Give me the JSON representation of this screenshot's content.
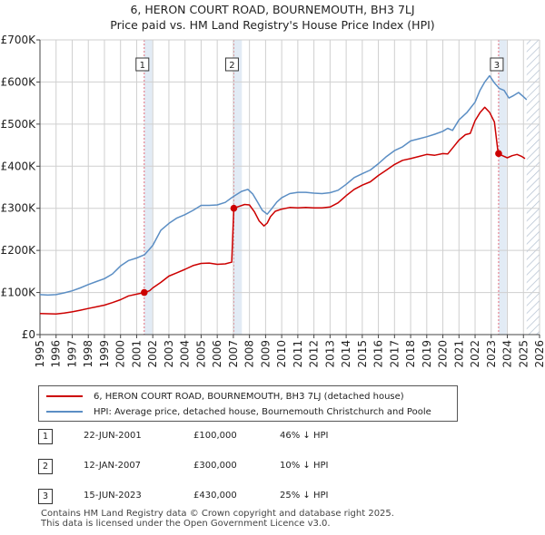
{
  "title": {
    "line1": "6, HERON COURT ROAD, BOURNEMOUTH, BH3 7LJ",
    "line2": "Price paid vs. HM Land Registry's House Price Index (HPI)"
  },
  "colors": {
    "property_line": "#cc0000",
    "hpi_line": "#5b8ec4",
    "marker_line": "#e06c7a",
    "sale_shade": "#dbe6f3",
    "future_hatch": "#b5c2d2",
    "grid": "#cfcfcf"
  },
  "chart_data": {
    "type": "line",
    "xlabel": "",
    "ylabel": "",
    "xlim": [
      1995,
      2026
    ],
    "ylim": [
      0,
      700000
    ],
    "x_ticks": [
      "1995",
      "1996",
      "1997",
      "1998",
      "1999",
      "2000",
      "2001",
      "2002",
      "2003",
      "2004",
      "2005",
      "2006",
      "2007",
      "2008",
      "2009",
      "2010",
      "2011",
      "2012",
      "2013",
      "2014",
      "2015",
      "2016",
      "2017",
      "2018",
      "2019",
      "2020",
      "2021",
      "2022",
      "2023",
      "2024",
      "2025",
      "2026"
    ],
    "y_ticks": [
      {
        "value": 0,
        "label": "£0"
      },
      {
        "value": 100000,
        "label": "£100K"
      },
      {
        "value": 200000,
        "label": "£200K"
      },
      {
        "value": 300000,
        "label": "£300K"
      },
      {
        "value": 400000,
        "label": "£400K"
      },
      {
        "value": 500000,
        "label": "£500K"
      },
      {
        "value": 600000,
        "label": "£600K"
      },
      {
        "value": 700000,
        "label": "£700K"
      }
    ],
    "grid": true,
    "data_end": 2025.2,
    "series": [
      {
        "name": "6, HERON COURT ROAD, BOURNEMOUTH, BH3 7LJ (detached house)",
        "color": "#cc0000",
        "x": [
          1995.0,
          1996.0,
          1996.5,
          1997.0,
          1997.5,
          1998.0,
          1998.5,
          1999.0,
          1999.5,
          2000.0,
          2000.5,
          2001.0,
          2001.47,
          2001.8,
          2002.0,
          2002.5,
          2003.0,
          2003.5,
          2004.0,
          2004.5,
          2005.0,
          2005.5,
          2006.0,
          2006.5,
          2006.9,
          2007.03,
          2007.3,
          2007.7,
          2008.0,
          2008.3,
          2008.6,
          2008.9,
          2009.1,
          2009.3,
          2009.6,
          2010.0,
          2010.5,
          2011.0,
          2011.5,
          2012.0,
          2012.5,
          2013.0,
          2013.5,
          2014.0,
          2014.5,
          2015.0,
          2015.5,
          2016.0,
          2016.5,
          2017.0,
          2017.5,
          2018.0,
          2018.5,
          2019.0,
          2019.5,
          2020.0,
          2020.3,
          2020.6,
          2021.0,
          2021.4,
          2021.7,
          2022.0,
          2022.3,
          2022.6,
          2022.9,
          2023.2,
          2023.4,
          2023.46,
          2023.7,
          2024.0,
          2024.3,
          2024.6,
          2024.9,
          2025.1
        ],
        "y": [
          50000,
          49000,
          51000,
          54000,
          58000,
          62000,
          66000,
          70000,
          76000,
          83000,
          92000,
          96000,
          100000,
          104000,
          111000,
          124000,
          139000,
          147000,
          155000,
          164000,
          169000,
          170000,
          167000,
          168000,
          172000,
          300000,
          304000,
          309000,
          308000,
          292000,
          270000,
          258000,
          265000,
          280000,
          293000,
          298000,
          302000,
          301000,
          302000,
          301000,
          301000,
          303000,
          313000,
          330000,
          345000,
          355000,
          363000,
          378000,
          391000,
          404000,
          414000,
          418000,
          423000,
          428000,
          426000,
          430000,
          429000,
          443000,
          462000,
          475000,
          478000,
          508000,
          527000,
          540000,
          528000,
          505000,
          440000,
          430000,
          425000,
          420000,
          425000,
          428000,
          423000,
          418000
        ]
      },
      {
        "name": "HPI: Average price, detached house, Bournemouth Christchurch and Poole",
        "color": "#5b8ec4",
        "x": [
          1995.0,
          1995.5,
          1996.0,
          1996.5,
          1997.0,
          1997.5,
          1998.0,
          1998.5,
          1999.0,
          1999.5,
          2000.0,
          2000.5,
          2001.0,
          2001.5,
          2002.0,
          2002.5,
          2003.0,
          2003.5,
          2004.0,
          2004.5,
          2005.0,
          2005.5,
          2006.0,
          2006.5,
          2007.0,
          2007.5,
          2007.9,
          2008.2,
          2008.5,
          2008.8,
          2009.1,
          2009.4,
          2009.7,
          2010.0,
          2010.5,
          2011.0,
          2011.5,
          2012.0,
          2012.5,
          2013.0,
          2013.5,
          2014.0,
          2014.5,
          2015.0,
          2015.5,
          2016.0,
          2016.5,
          2017.0,
          2017.5,
          2018.0,
          2018.5,
          2019.0,
          2019.5,
          2020.0,
          2020.3,
          2020.6,
          2021.0,
          2021.5,
          2022.0,
          2022.3,
          2022.6,
          2022.9,
          2023.2,
          2023.5,
          2023.8,
          2024.1,
          2024.4,
          2024.7,
          2025.0,
          2025.2
        ],
        "y": [
          95000,
          94000,
          95000,
          99000,
          104000,
          111000,
          119000,
          126000,
          133000,
          144000,
          163000,
          176000,
          182000,
          190000,
          212000,
          248000,
          264000,
          277000,
          285000,
          295000,
          307000,
          307000,
          308000,
          314000,
          328000,
          340000,
          345000,
          334000,
          315000,
          295000,
          286000,
          300000,
          315000,
          325000,
          335000,
          338000,
          338000,
          336000,
          335000,
          337000,
          343000,
          357000,
          373000,
          382000,
          391000,
          406000,
          423000,
          437000,
          446000,
          460000,
          465000,
          470000,
          476000,
          483000,
          490000,
          485000,
          510000,
          528000,
          552000,
          580000,
          600000,
          615000,
          598000,
          585000,
          580000,
          562000,
          568000,
          575000,
          565000,
          558000
        ]
      }
    ],
    "sales": [
      {
        "id": "1",
        "x": 2001.47,
        "y": 100000
      },
      {
        "id": "2",
        "x": 2007.03,
        "y": 300000
      },
      {
        "id": "3",
        "x": 2023.46,
        "y": 430000
      }
    ]
  },
  "legend": {
    "property_label": "6, HERON COURT ROAD, BOURNEMOUTH, BH3 7LJ (detached house)",
    "hpi_label": "HPI: Average price, detached house, Bournemouth Christchurch and Poole"
  },
  "sales_table": [
    {
      "num": "1",
      "date": "22-JUN-2001",
      "price": "£100,000",
      "hpi": "46% ↓ HPI"
    },
    {
      "num": "2",
      "date": "12-JAN-2007",
      "price": "£300,000",
      "hpi": "10% ↓ HPI"
    },
    {
      "num": "3",
      "date": "15-JUN-2023",
      "price": "£430,000",
      "hpi": "25% ↓ HPI"
    }
  ],
  "footer": {
    "line1": "Contains HM Land Registry data © Crown copyright and database right 2025.",
    "line2": "This data is licensed under the Open Government Licence v3.0."
  }
}
